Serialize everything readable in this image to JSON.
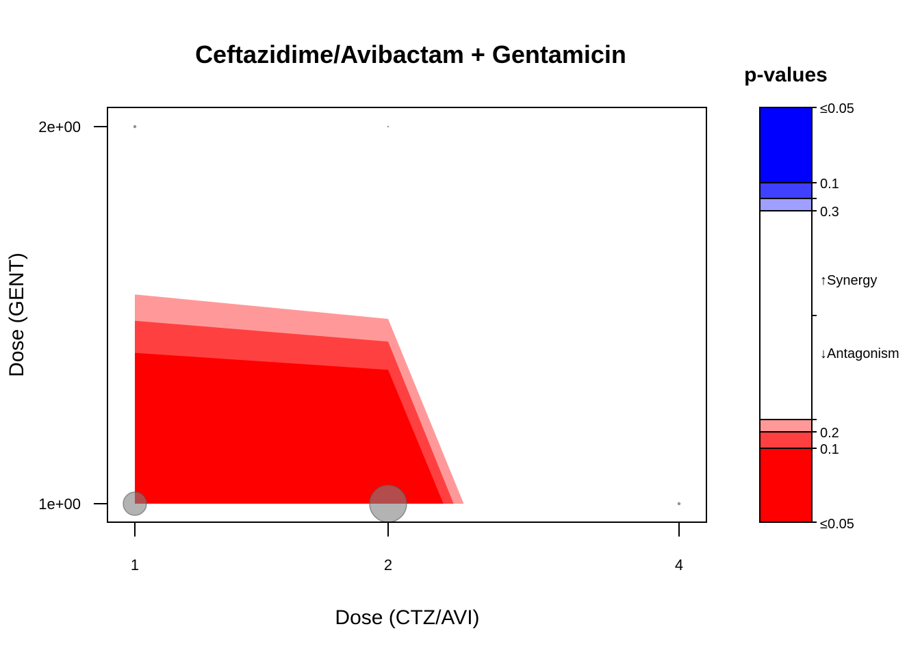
{
  "chart_data": {
    "type": "contour",
    "title": "Ceftazidime/Avibactam + Gentamicin",
    "xlabel": "Dose (CTZ/AVI)",
    "ylabel": "Dose (GENT)",
    "x_ticks": [
      "1",
      "2",
      "4"
    ],
    "y_ticks": [
      "1e+00",
      "2e+00"
    ],
    "y_range": [
      0.95,
      2.05
    ],
    "regions": [
      {
        "name": "p 0.1-0.2",
        "color": "#ff9999",
        "boundary": [
          [
            1,
            1.555
          ],
          [
            2,
            1.49
          ],
          [
            2.52,
            1
          ]
        ]
      },
      {
        "name": "p 0.05-0.1",
        "color": "#ff4040",
        "boundary": [
          [
            1,
            1.485
          ],
          [
            2,
            1.43
          ],
          [
            2.45,
            1
          ]
        ]
      },
      {
        "name": "p <=0.05",
        "color": "#ff0000",
        "boundary": [
          [
            1,
            1.4
          ],
          [
            2,
            1.355
          ],
          [
            2.38,
            1
          ]
        ]
      }
    ],
    "points": [
      {
        "x": 1,
        "y": 1,
        "size": 34
      },
      {
        "x": 2,
        "y": 1,
        "size": 54
      },
      {
        "x": 1,
        "y": 2,
        "size": 3
      },
      {
        "x": 2,
        "y": 2,
        "size": 1
      },
      {
        "x": 4,
        "y": 1,
        "size": 3
      }
    ]
  },
  "legend": {
    "title": "p-values",
    "labels": {
      "top_005": "≤0.05",
      "top_01": "0.1",
      "top_03": "0.3",
      "synergy": "↑Synergy",
      "antagonism": "↓Antagonism",
      "bot_02": "0.2",
      "bot_01": "0.1",
      "bot_005": "≤0.05"
    },
    "colors": {
      "syn_strong": "#0000ff",
      "syn_mid": "#4040ff",
      "syn_weak": "#9f9fff",
      "neutral": "#ffffff",
      "ant_weak": "#ff9999",
      "ant_mid": "#ff4040",
      "ant_strong": "#ff0000"
    }
  }
}
